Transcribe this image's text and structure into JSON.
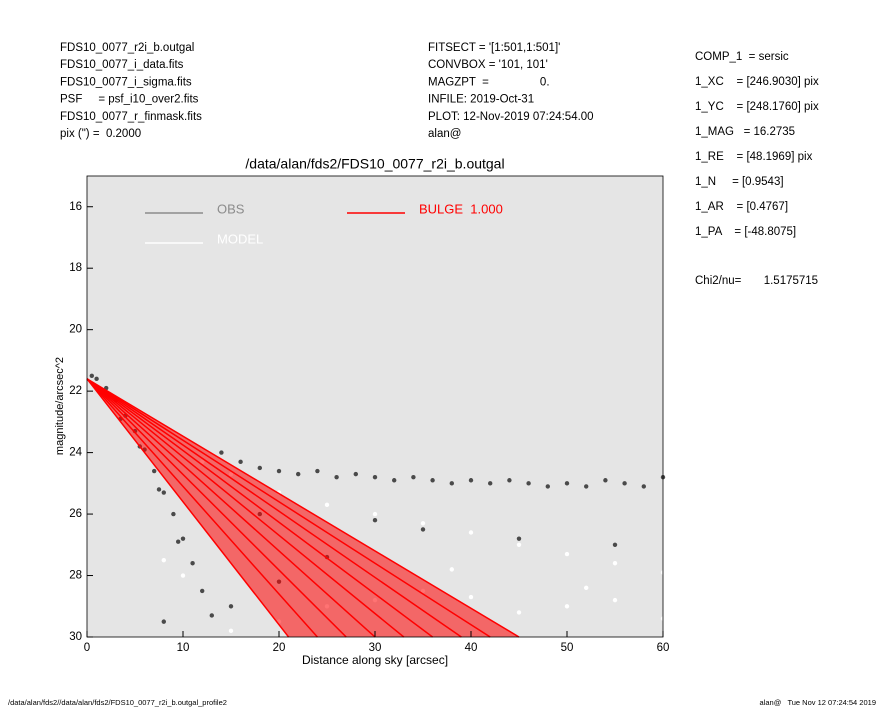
{
  "header": {
    "left": [
      "FDS10_0077_r2i_b.outgal",
      "FDS10_0077_i_data.fits",
      "FDS10_0077_i_sigma.fits",
      "PSF     = psf_i10_over2.fits",
      "FDS10_0077_r_finmask.fits",
      "pix (\") =  0.2000"
    ],
    "middle": [
      "FITSECT = '[1:501,1:501]'",
      "CONVBOX = '101, 101'",
      "MAGZPT  =                0.",
      "INFILE: 2019-Oct-31",
      "PLOT: 12-Nov-2019 07:24:54.00",
      "alan@"
    ],
    "right": [
      "COMP_1  = sersic",
      "1_XC    = [246.9030] pix",
      "1_YC    = [248.1760] pix",
      "1_MAG   = 16.2735",
      "1_RE    = [48.1969] pix",
      "1_N     = [0.9543]",
      "1_AR    = [0.4767]",
      "1_PA    = [-48.8075]"
    ],
    "chi2": "Chi2/nu=       1.5175715"
  },
  "footer": {
    "left": "/data/alan/fds2//data/alan/fds2/FDS10_0077_r2i_b.outgal_profile2",
    "right": "alan@   Tue Nov 12 07:24:54 2019"
  },
  "chart_data": {
    "type": "scatter",
    "title": "/data/alan/fds2/FDS10_0077_r2i_b.outgal",
    "xlabel": "Distance along sky [arcsec]",
    "ylabel": "magnitude/arcsec^2",
    "xlim": [
      0,
      60
    ],
    "ylim": [
      30,
      15
    ],
    "xticks": [
      0,
      10,
      20,
      30,
      40,
      50,
      60
    ],
    "yticks": [
      16,
      18,
      20,
      22,
      24,
      26,
      28,
      30
    ],
    "series": [
      {
        "name": "OBS",
        "color": "#4a4a4a",
        "x": [
          0.5,
          1,
          2,
          3,
          4,
          5,
          6,
          7,
          8,
          9,
          10,
          11,
          12,
          13,
          3.5,
          5.5,
          7.5,
          9.5,
          14,
          16,
          18,
          20,
          22,
          24,
          26,
          28,
          30,
          32,
          34,
          36,
          38,
          40,
          42,
          44,
          46,
          48,
          50,
          52,
          54,
          56,
          58,
          60,
          15,
          8,
          20,
          25,
          35,
          45,
          55,
          18,
          30
        ],
        "y": [
          21.5,
          21.6,
          21.9,
          22.3,
          22.8,
          23.3,
          23.9,
          24.6,
          25.3,
          26.0,
          26.8,
          27.6,
          28.5,
          29.3,
          22.9,
          23.8,
          25.2,
          26.9,
          24.0,
          24.3,
          24.5,
          24.6,
          24.7,
          24.6,
          24.8,
          24.7,
          24.8,
          24.9,
          24.8,
          24.9,
          25.0,
          24.9,
          25.0,
          24.9,
          25.0,
          25.1,
          25.0,
          25.1,
          24.9,
          25.0,
          25.1,
          24.8,
          29.0,
          29.5,
          28.2,
          27.4,
          26.5,
          26.8,
          27.0,
          26.0,
          26.2
        ]
      },
      {
        "name": "MODEL",
        "color": "#ffffff",
        "x": [
          12,
          15,
          20,
          25,
          30,
          35,
          40,
          45,
          50,
          55,
          60,
          20,
          25,
          30,
          35,
          40,
          45,
          50,
          55,
          60,
          10,
          8,
          15,
          38,
          52
        ],
        "y": [
          24.3,
          24.7,
          25.3,
          25.7,
          26.0,
          26.3,
          26.6,
          27.0,
          27.3,
          27.6,
          27.9,
          29.5,
          29.0,
          28.8,
          28.5,
          28.7,
          29.2,
          29.0,
          28.8,
          29.4,
          28.0,
          27.5,
          29.8,
          27.8,
          28.4
        ]
      },
      {
        "name": "BULGE  1.000",
        "color": "#ff0000",
        "lines": [
          {
            "x": [
              0,
              21
            ],
            "y": [
              21.6,
              30
            ]
          },
          {
            "x": [
              0,
              24
            ],
            "y": [
              21.6,
              30
            ]
          },
          {
            "x": [
              0,
              27
            ],
            "y": [
              21.6,
              30
            ]
          },
          {
            "x": [
              0,
              30
            ],
            "y": [
              21.6,
              30
            ]
          },
          {
            "x": [
              0,
              33
            ],
            "y": [
              21.6,
              30
            ]
          },
          {
            "x": [
              0,
              36
            ],
            "y": [
              21.6,
              30
            ]
          },
          {
            "x": [
              0,
              39
            ],
            "y": [
              21.6,
              30
            ]
          },
          {
            "x": [
              0,
              42
            ],
            "y": [
              21.6,
              30
            ]
          },
          {
            "x": [
              0,
              45
            ],
            "y": [
              21.6,
              30
            ]
          }
        ]
      }
    ]
  }
}
